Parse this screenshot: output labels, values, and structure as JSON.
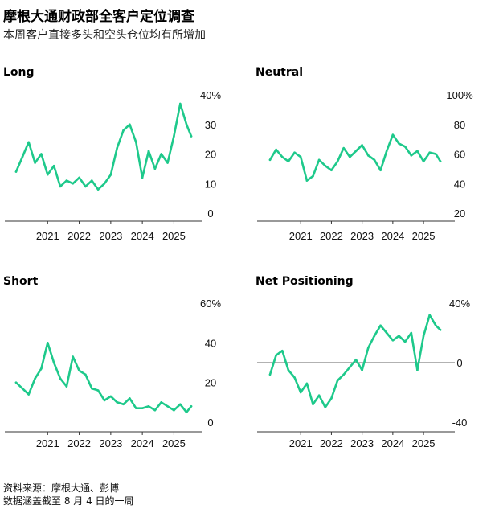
{
  "title": "摩根大通财政部全客户定位调查",
  "subtitle": "本周客户直接多头和空头仓位均有所增加",
  "footer": {
    "source": "资料来源：摩根大通、彭博",
    "note": "数据涵盖截至 8 月 4 日的一周"
  },
  "colors": {
    "line": "#1ec98b",
    "axis": "#333333",
    "zero": "#666666"
  },
  "chart_data": [
    {
      "id": "long",
      "type": "line",
      "title": "Long",
      "x_range": [
        2020.0,
        2025.6
      ],
      "ylim": [
        0,
        40
      ],
      "y_ticks": [
        "0",
        "10",
        "20",
        "30",
        "40%"
      ],
      "x_ticks": [
        "2021",
        "2022",
        "2023",
        "2024",
        "2025"
      ],
      "x": [
        2020.0,
        2020.2,
        2020.4,
        2020.6,
        2020.8,
        2021.0,
        2021.2,
        2021.4,
        2021.6,
        2021.8,
        2022.0,
        2022.2,
        2022.4,
        2022.6,
        2022.8,
        2023.0,
        2023.2,
        2023.4,
        2023.6,
        2023.8,
        2024.0,
        2024.2,
        2024.4,
        2024.6,
        2024.8,
        2025.0,
        2025.2,
        2025.4,
        2025.55
      ],
      "y": [
        14,
        19,
        24,
        17,
        20,
        13,
        16,
        9,
        11,
        10,
        12,
        9,
        11,
        8,
        10,
        13,
        22,
        28,
        30,
        24,
        12,
        21,
        15,
        20,
        17,
        26,
        37,
        30,
        26
      ]
    },
    {
      "id": "neutral",
      "type": "line",
      "title": "Neutral",
      "x_range": [
        2020.0,
        2025.6
      ],
      "ylim": [
        20,
        100
      ],
      "y_ticks": [
        "20",
        "40",
        "60",
        "80",
        "100%"
      ],
      "x_ticks": [
        "2021",
        "2022",
        "2023",
        "2024",
        "2025"
      ],
      "x": [
        2020.0,
        2020.2,
        2020.4,
        2020.6,
        2020.8,
        2021.0,
        2021.2,
        2021.4,
        2021.6,
        2021.8,
        2022.0,
        2022.2,
        2022.4,
        2022.6,
        2022.8,
        2023.0,
        2023.2,
        2023.4,
        2023.6,
        2023.8,
        2024.0,
        2024.2,
        2024.4,
        2024.6,
        2024.8,
        2025.0,
        2025.2,
        2025.4,
        2025.55
      ],
      "y": [
        56,
        63,
        58,
        55,
        61,
        58,
        42,
        45,
        56,
        52,
        49,
        55,
        64,
        58,
        62,
        66,
        59,
        56,
        49,
        62,
        73,
        67,
        65,
        59,
        62,
        55,
        61,
        60,
        55
      ]
    },
    {
      "id": "short",
      "type": "line",
      "title": "Short",
      "x_range": [
        2020.0,
        2025.6
      ],
      "ylim": [
        0,
        60
      ],
      "y_ticks": [
        "0",
        "20",
        "40",
        "60%"
      ],
      "x_ticks": [
        "2021",
        "2022",
        "2023",
        "2024",
        "2025"
      ],
      "x": [
        2020.0,
        2020.2,
        2020.4,
        2020.6,
        2020.8,
        2021.0,
        2021.2,
        2021.4,
        2021.6,
        2021.8,
        2022.0,
        2022.2,
        2022.4,
        2022.6,
        2022.8,
        2023.0,
        2023.2,
        2023.4,
        2023.6,
        2023.8,
        2024.0,
        2024.2,
        2024.4,
        2024.6,
        2024.8,
        2025.0,
        2025.2,
        2025.4,
        2025.55
      ],
      "y": [
        20,
        17,
        14,
        22,
        27,
        40,
        30,
        22,
        18,
        33,
        26,
        24,
        17,
        16,
        11,
        13,
        10,
        9,
        12,
        7,
        7,
        8,
        6,
        10,
        8,
        6,
        9,
        5,
        8
      ]
    },
    {
      "id": "net",
      "type": "line",
      "title": "Net Positioning",
      "x_range": [
        2020.0,
        2025.6
      ],
      "ylim": [
        -40,
        40
      ],
      "y_ticks": [
        "-40",
        "0",
        "40%"
      ],
      "x_ticks": [
        "2021",
        "2022",
        "2023",
        "2024",
        "2025"
      ],
      "zero_line": true,
      "x": [
        2020.0,
        2020.2,
        2020.4,
        2020.6,
        2020.8,
        2021.0,
        2021.2,
        2021.4,
        2021.6,
        2021.8,
        2022.0,
        2022.2,
        2022.4,
        2022.6,
        2022.8,
        2023.0,
        2023.2,
        2023.4,
        2023.6,
        2023.8,
        2024.0,
        2024.2,
        2024.4,
        2024.6,
        2024.8,
        2025.0,
        2025.2,
        2025.4,
        2025.55
      ],
      "y": [
        -8,
        5,
        8,
        -5,
        -10,
        -20,
        -14,
        -28,
        -22,
        -30,
        -24,
        -12,
        -8,
        -3,
        2,
        -5,
        10,
        18,
        25,
        20,
        15,
        18,
        14,
        20,
        -5,
        18,
        32,
        25,
        22
      ]
    }
  ]
}
